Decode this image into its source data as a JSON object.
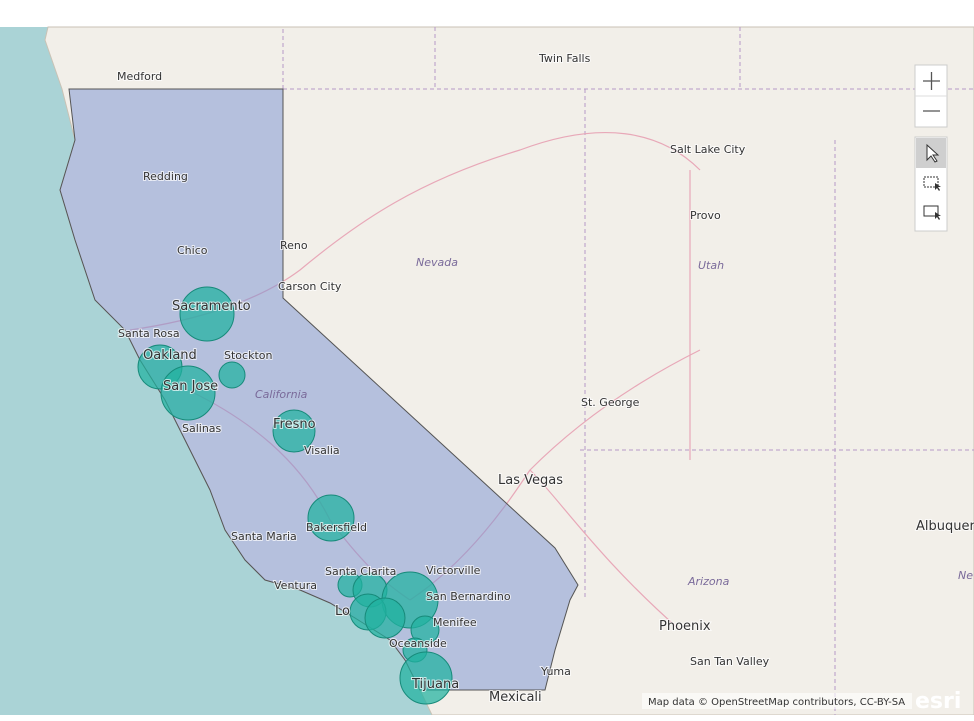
{
  "map": {
    "places": [
      "Medford",
      "Twin Falls",
      "Redding",
      "Salt Lake City",
      "Provo",
      "Chico",
      "Reno",
      "Carson City",
      "Sacramento",
      "Santa Rosa",
      "Oakland",
      "Stockton",
      "San Jose",
      "Salinas",
      "Fresno",
      "Visalia",
      "St. George",
      "Las Vegas",
      "Bakersfield",
      "Santa Maria",
      "Albuquer",
      "Santa Clarita",
      "Victorville",
      "Ventura",
      "Lo",
      "San Bernardino",
      "Menifee",
      "Oceanside",
      "Phoenix",
      "San Tan Valley",
      "Yuma",
      "Tijuana",
      "Mexicali"
    ],
    "regions": [
      "Nevada",
      "Utah",
      "California",
      "Arizona",
      "Ne"
    ],
    "attribution": "Map data © OpenStreetMap contributors, CC-BY-SA",
    "logo": "esri"
  }
}
